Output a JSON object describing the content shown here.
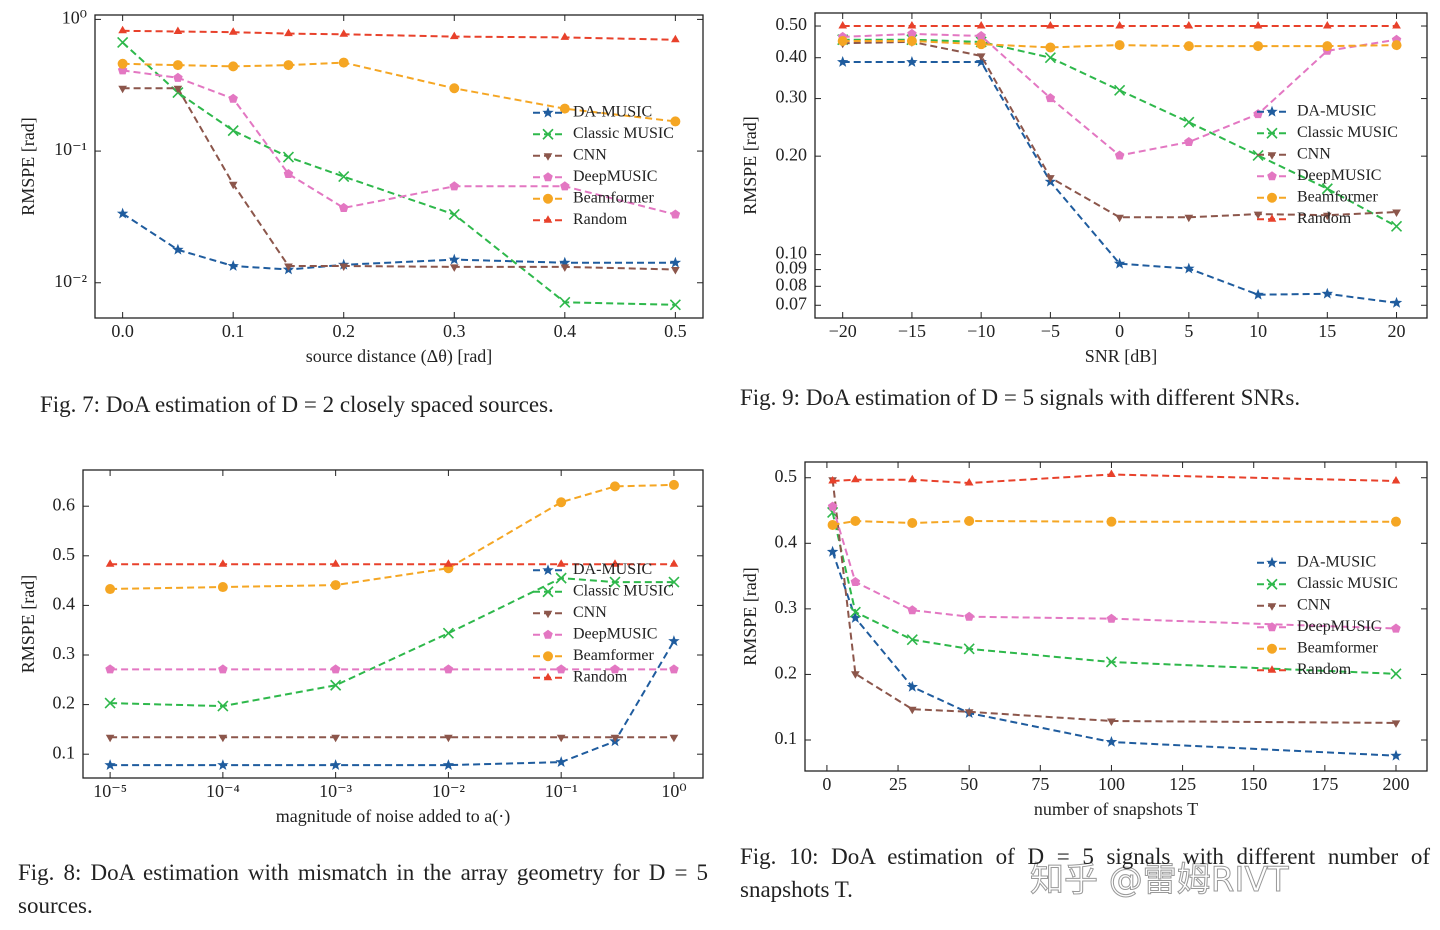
{
  "chart_data": [
    {
      "type": "line",
      "caption": "Fig. 7: DoA estimation of D = 2 closely spaced sources.",
      "xlabel": "source distance (Δθ) [rad]",
      "ylabel": "RMSPE [rad]",
      "xscale": "linear",
      "yscale": "log",
      "legend": "center right",
      "x": [
        0,
        0.05,
        0.1,
        0.15,
        0.2,
        0.3,
        0.4,
        0.5
      ],
      "xlim": [
        -0.025,
        0.525
      ],
      "ylim": [
        0.0054,
        1.08
      ],
      "xticks": [
        {
          "value": 0,
          "label": "0.0"
        },
        0.1,
        0.2,
        0.3,
        0.4,
        0.5
      ],
      "yticks": [
        {
          "value": 1,
          "label": "10⁰"
        },
        {
          "value": 0.1,
          "label": "10⁻¹"
        },
        {
          "value": 0.01,
          "label": "10⁻²"
        }
      ],
      "series": [
        {
          "name": "DA-MUSIC",
          "color": "#1f5c9e",
          "marker": "star",
          "values": [
            0.0335,
            0.0178,
            0.0134,
            0.0126,
            0.0137,
            0.015,
            0.0142,
            0.0142
          ]
        },
        {
          "name": "Classic MUSIC",
          "color": "#2eb84b",
          "marker": "x",
          "values": [
            0.668,
            0.278,
            0.143,
            0.09,
            0.064,
            0.033,
            0.0071,
            0.0068
          ]
        },
        {
          "name": "CNN",
          "color": "#8c564b",
          "marker": "tri-down",
          "values": [
            0.3,
            0.3,
            0.056,
            0.0134,
            0.0134,
            0.0132,
            0.0132,
            0.0126
          ]
        },
        {
          "name": "DeepMUSIC",
          "color": "#e377c2",
          "marker": "pentagon",
          "values": [
            0.41,
            0.36,
            0.25,
            0.067,
            0.037,
            0.054,
            0.054,
            0.033
          ]
        },
        {
          "name": "Beamformer",
          "color": "#f5a623",
          "marker": "circle",
          "values": [
            0.46,
            0.45,
            0.44,
            0.45,
            0.47,
            0.3,
            0.21,
            0.168
          ]
        },
        {
          "name": "Random",
          "color": "#e8412b",
          "marker": "tri-up",
          "values": [
            0.82,
            0.81,
            0.8,
            0.78,
            0.77,
            0.74,
            0.73,
            0.7
          ]
        }
      ]
    },
    {
      "type": "line",
      "caption": "Fig. 9: DoA estimation of D = 5 signals with different SNRs.",
      "xlabel": "SNR [dB]",
      "ylabel": "RMSPE [rad]",
      "xscale": "linear",
      "yscale": "log",
      "legend": "center right",
      "x": [
        -20,
        -15,
        -10,
        -5,
        0,
        5,
        10,
        15,
        20
      ],
      "xlim": [
        -22,
        22.2
      ],
      "ylim": [
        0.064,
        0.548
      ],
      "xticks": [
        {
          "value": -20,
          "label": "−20"
        },
        {
          "value": -15,
          "label": "−15"
        },
        {
          "value": -10,
          "label": "−10"
        },
        {
          "value": -5,
          "label": "−5"
        },
        0,
        5,
        10,
        15,
        20
      ],
      "yticks": [
        {
          "value": 0.5,
          "label": "0.50"
        },
        {
          "value": 0.4,
          "label": "0.40"
        },
        {
          "value": 0.3,
          "label": "0.30"
        },
        {
          "value": 0.2,
          "label": "0.20"
        },
        {
          "value": 0.1,
          "label": "0.10"
        },
        0.09,
        0.08,
        0.07
      ],
      "series": [
        {
          "name": "DA-MUSIC",
          "color": "#1f5c9e",
          "marker": "star",
          "values": [
            0.388,
            0.388,
            0.388,
            0.167,
            0.0938,
            0.0906,
            0.0754,
            0.0759,
            0.0712
          ]
        },
        {
          "name": "Classic MUSIC",
          "color": "#2eb84b",
          "marker": "x",
          "values": [
            0.454,
            0.454,
            0.447,
            0.4,
            0.318,
            0.254,
            0.201,
            0.159,
            0.122
          ]
        },
        {
          "name": "CNN",
          "color": "#8c564b",
          "marker": "tri-down",
          "values": [
            0.443,
            0.447,
            0.405,
            0.172,
            0.13,
            0.13,
            0.133,
            0.132,
            0.135
          ]
        },
        {
          "name": "DeepMUSIC",
          "color": "#e377c2",
          "marker": "pentagon",
          "values": [
            0.463,
            0.473,
            0.466,
            0.301,
            0.201,
            0.221,
            0.269,
            0.42,
            0.454
          ]
        },
        {
          "name": "Beamformer",
          "color": "#f5a623",
          "marker": "circle",
          "values": [
            0.45,
            0.45,
            0.44,
            0.43,
            0.437,
            0.434,
            0.434,
            0.434,
            0.437
          ]
        },
        {
          "name": "Random",
          "color": "#e8412b",
          "marker": "tri-up",
          "values": [
            0.5,
            0.5,
            0.5,
            0.5,
            0.5,
            0.5,
            0.5,
            0.5,
            0.5
          ]
        }
      ]
    },
    {
      "type": "line",
      "caption": "Fig. 8: DoA estimation with mismatch in the array geometry for D = 5 sources.",
      "xlabel": "magnitude of noise added to a(·)",
      "ylabel": "RMSPE [rad]",
      "xscale": "log",
      "yscale": "linear",
      "legend": "center right",
      "x": [
        1e-05,
        0.0001,
        0.001,
        0.01,
        0.1,
        0.3,
        1
      ],
      "xlim": [
        5.75e-06,
        1.81
      ],
      "ylim": [
        0.052,
        0.673
      ],
      "xticks": [
        {
          "value": 1e-05,
          "label": "10⁻⁵"
        },
        {
          "value": 0.0001,
          "label": "10⁻⁴"
        },
        {
          "value": 0.001,
          "label": "10⁻³"
        },
        {
          "value": 0.01,
          "label": "10⁻²"
        },
        {
          "value": 0.1,
          "label": "10⁻¹"
        },
        {
          "value": 1,
          "label": "10⁰"
        }
      ],
      "yticks": [
        0.1,
        0.2,
        0.3,
        0.4,
        0.5,
        0.6
      ],
      "series": [
        {
          "name": "DA-MUSIC",
          "color": "#1f5c9e",
          "marker": "star",
          "values": [
            0.078,
            0.078,
            0.078,
            0.078,
            0.084,
            0.126,
            0.328
          ]
        },
        {
          "name": "Classic MUSIC",
          "color": "#2eb84b",
          "marker": "x",
          "values": [
            0.203,
            0.197,
            0.239,
            0.344,
            0.455,
            0.447,
            0.447
          ]
        },
        {
          "name": "CNN",
          "color": "#8c564b",
          "marker": "tri-down",
          "values": [
            0.134,
            0.134,
            0.134,
            0.134,
            0.134,
            0.134,
            0.134
          ]
        },
        {
          "name": "DeepMUSIC",
          "color": "#e377c2",
          "marker": "pentagon",
          "values": [
            0.271,
            0.271,
            0.271,
            0.271,
            0.271,
            0.271,
            0.271
          ]
        },
        {
          "name": "Beamformer",
          "color": "#f5a623",
          "marker": "circle",
          "values": [
            0.433,
            0.437,
            0.441,
            0.475,
            0.608,
            0.64,
            0.643
          ]
        },
        {
          "name": "Random",
          "color": "#e8412b",
          "marker": "tri-up",
          "values": [
            0.483,
            0.483,
            0.483,
            0.483,
            0.483,
            0.483,
            0.483
          ]
        }
      ]
    },
    {
      "type": "line",
      "caption": "Fig. 10: DoA estimation of D = 5 signals with different number of snapshots T.",
      "xlabel": "number of snapshots T",
      "ylabel": "RMSPE [rad]",
      "xscale": "linear",
      "yscale": "linear",
      "legend": "center right",
      "x": [
        2,
        10,
        30,
        50,
        100,
        200
      ],
      "xlim": [
        -7.7,
        210.9
      ],
      "ylim": [
        0.0527,
        0.524
      ],
      "xticks": [
        0,
        25,
        50,
        75,
        100,
        125,
        150,
        175,
        200
      ],
      "yticks": [
        0.1,
        0.2,
        0.3,
        0.4,
        0.5
      ],
      "series": [
        {
          "name": "DA-MUSIC",
          "color": "#1f5c9e",
          "marker": "star",
          "values": [
            0.387,
            0.286,
            0.181,
            0.141,
            0.097,
            0.076
          ]
        },
        {
          "name": "Classic MUSIC",
          "color": "#2eb84b",
          "marker": "x",
          "values": [
            0.447,
            0.295,
            0.253,
            0.239,
            0.219,
            0.201
          ]
        },
        {
          "name": "CNN",
          "color": "#8c564b",
          "marker": "tri-down",
          "values": [
            0.497,
            0.201,
            0.147,
            0.143,
            0.129,
            0.126
          ]
        },
        {
          "name": "DeepMUSIC",
          "color": "#e377c2",
          "marker": "pentagon",
          "values": [
            0.456,
            0.341,
            0.298,
            0.288,
            0.285,
            0.27
          ]
        },
        {
          "name": "Beamformer",
          "color": "#f5a623",
          "marker": "circle",
          "values": [
            0.428,
            0.434,
            0.431,
            0.434,
            0.433,
            0.433
          ]
        },
        {
          "name": "Random",
          "color": "#e8412b",
          "marker": "tri-up",
          "values": [
            0.495,
            0.497,
            0.497,
            0.492,
            0.505,
            0.495
          ]
        }
      ]
    }
  ],
  "watermark": "知乎 @雷姆RIVT"
}
